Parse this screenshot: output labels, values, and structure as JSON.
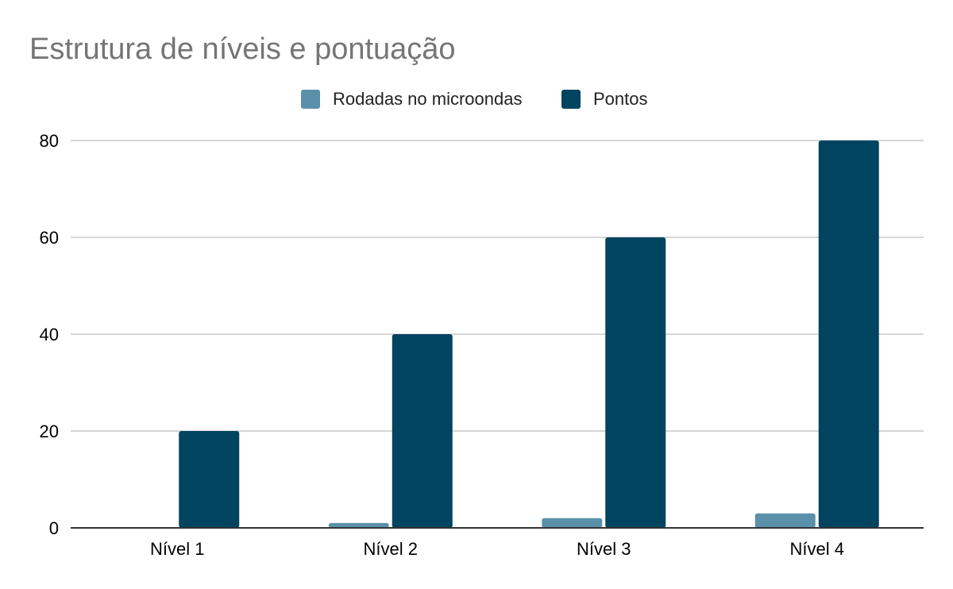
{
  "chart_data": {
    "type": "bar",
    "title": "Estrutura de níveis e pontuação",
    "categories": [
      "Nível 1",
      "Nível 2",
      "Nível 3",
      "Nível 4"
    ],
    "series": [
      {
        "name": "Rodadas no microondas",
        "values": [
          0,
          1,
          2,
          3
        ],
        "color": "#5b90ab"
      },
      {
        "name": "Pontos",
        "values": [
          20,
          40,
          60,
          80
        ],
        "color": "#004460"
      }
    ],
    "xlabel": "",
    "ylabel": "",
    "ylim": [
      0,
      80
    ],
    "yticks": [
      0,
      20,
      40,
      60,
      80
    ],
    "grid": true,
    "legend_position": "top-center"
  }
}
